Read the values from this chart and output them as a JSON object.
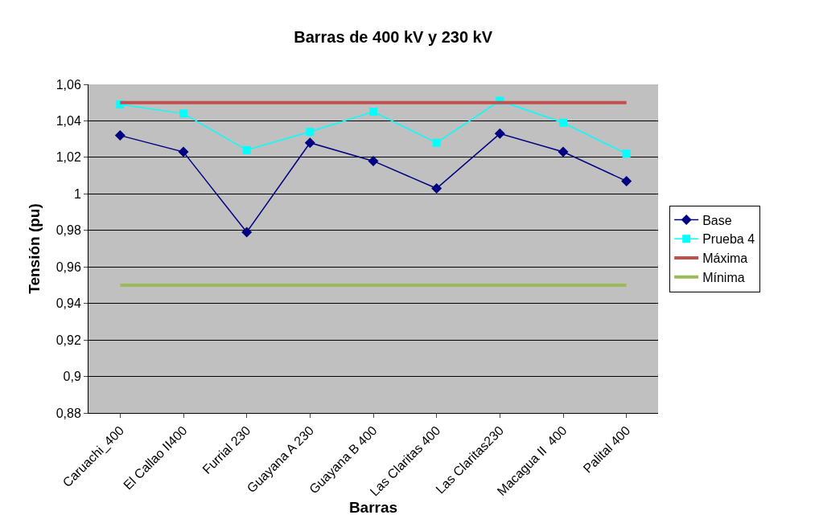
{
  "chart_data": {
    "type": "line",
    "title": "Barras de 400 kV y 230 kV",
    "xlabel": "Barras",
    "ylabel": "Tensión (pu)",
    "categories": [
      "Caruachi_400",
      "El Callao II400",
      "Furrial 230",
      "Guayana A 230",
      "Guayana B 400",
      "Las Claritas 400",
      "Las Claritas230",
      "Macagua II  400",
      "Palital 400"
    ],
    "series": [
      {
        "name": "Base",
        "color": "#000080",
        "marker": "diamond",
        "values": [
          1.032,
          1.023,
          0.979,
          1.028,
          1.018,
          1.003,
          1.033,
          1.023,
          1.007
        ]
      },
      {
        "name": "Prueba 4",
        "color": "#00ffff",
        "marker": "square",
        "values": [
          1.049,
          1.044,
          1.024,
          1.034,
          1.045,
          1.028,
          1.051,
          1.039,
          1.022
        ]
      },
      {
        "name": "Máxima",
        "color": "#c0504d",
        "marker": "none",
        "values": [
          1.05,
          1.05,
          1.05,
          1.05,
          1.05,
          1.05,
          1.05,
          1.05,
          1.05
        ]
      },
      {
        "name": "Mínima",
        "color": "#9bbb59",
        "marker": "none",
        "values": [
          0.95,
          0.95,
          0.95,
          0.95,
          0.95,
          0.95,
          0.95,
          0.95,
          0.95
        ]
      }
    ],
    "ylim": [
      0.88,
      1.06
    ],
    "yticks": [
      {
        "value": 0.88,
        "label": "0,88"
      },
      {
        "value": 0.9,
        "label": "0,9"
      },
      {
        "value": 0.92,
        "label": "0,92"
      },
      {
        "value": 0.94,
        "label": "0,94"
      },
      {
        "value": 0.96,
        "label": "0,96"
      },
      {
        "value": 0.98,
        "label": "0,98"
      },
      1,
      {
        "value": 1.02,
        "label": "1,02"
      },
      {
        "value": 1.04,
        "label": "1,04"
      },
      {
        "value": 1.06,
        "label": "1,06"
      }
    ],
    "grid": "y",
    "legend": "right"
  }
}
